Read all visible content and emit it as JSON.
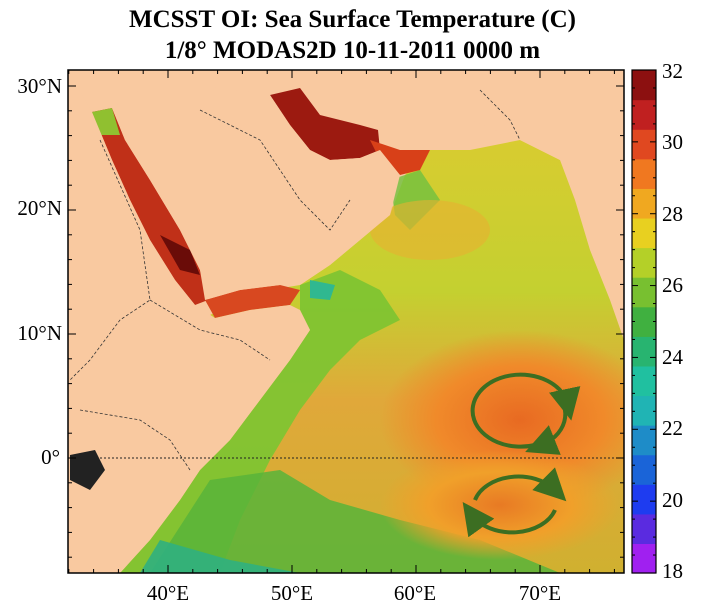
{
  "title_line1": "MCSST OI:  Sea Surface Temperature (C)",
  "title_line2": "1/8° MODAS2D 10-11-2011 0000 m",
  "latitude_labels": [
    "30°N",
    "20°N",
    "10°N",
    "0°"
  ],
  "longitude_labels": [
    "40°E",
    "50°E",
    "60°E",
    "70°E"
  ],
  "colorbar": {
    "tick_labels": [
      "32",
      "30",
      "28",
      "26",
      "24",
      "22",
      "20",
      "18"
    ],
    "min": 18,
    "max": 32,
    "colors": [
      "#a020f0",
      "#5a2be0",
      "#1e3cf0",
      "#1a64d8",
      "#1e8cc8",
      "#20b4b4",
      "#20c0a0",
      "#28b470",
      "#40b040",
      "#78c030",
      "#b4d028",
      "#e8d020",
      "#f0a820",
      "#f07820",
      "#e04820",
      "#c02020",
      "#8c1010"
    ]
  },
  "land_color": "#f9c9a0",
  "equator_label": "0°",
  "eddies": [
    {
      "name": "eddy-north",
      "rotation": "clockwise"
    },
    {
      "name": "eddy-south",
      "rotation": "anticlockwise"
    }
  ]
}
